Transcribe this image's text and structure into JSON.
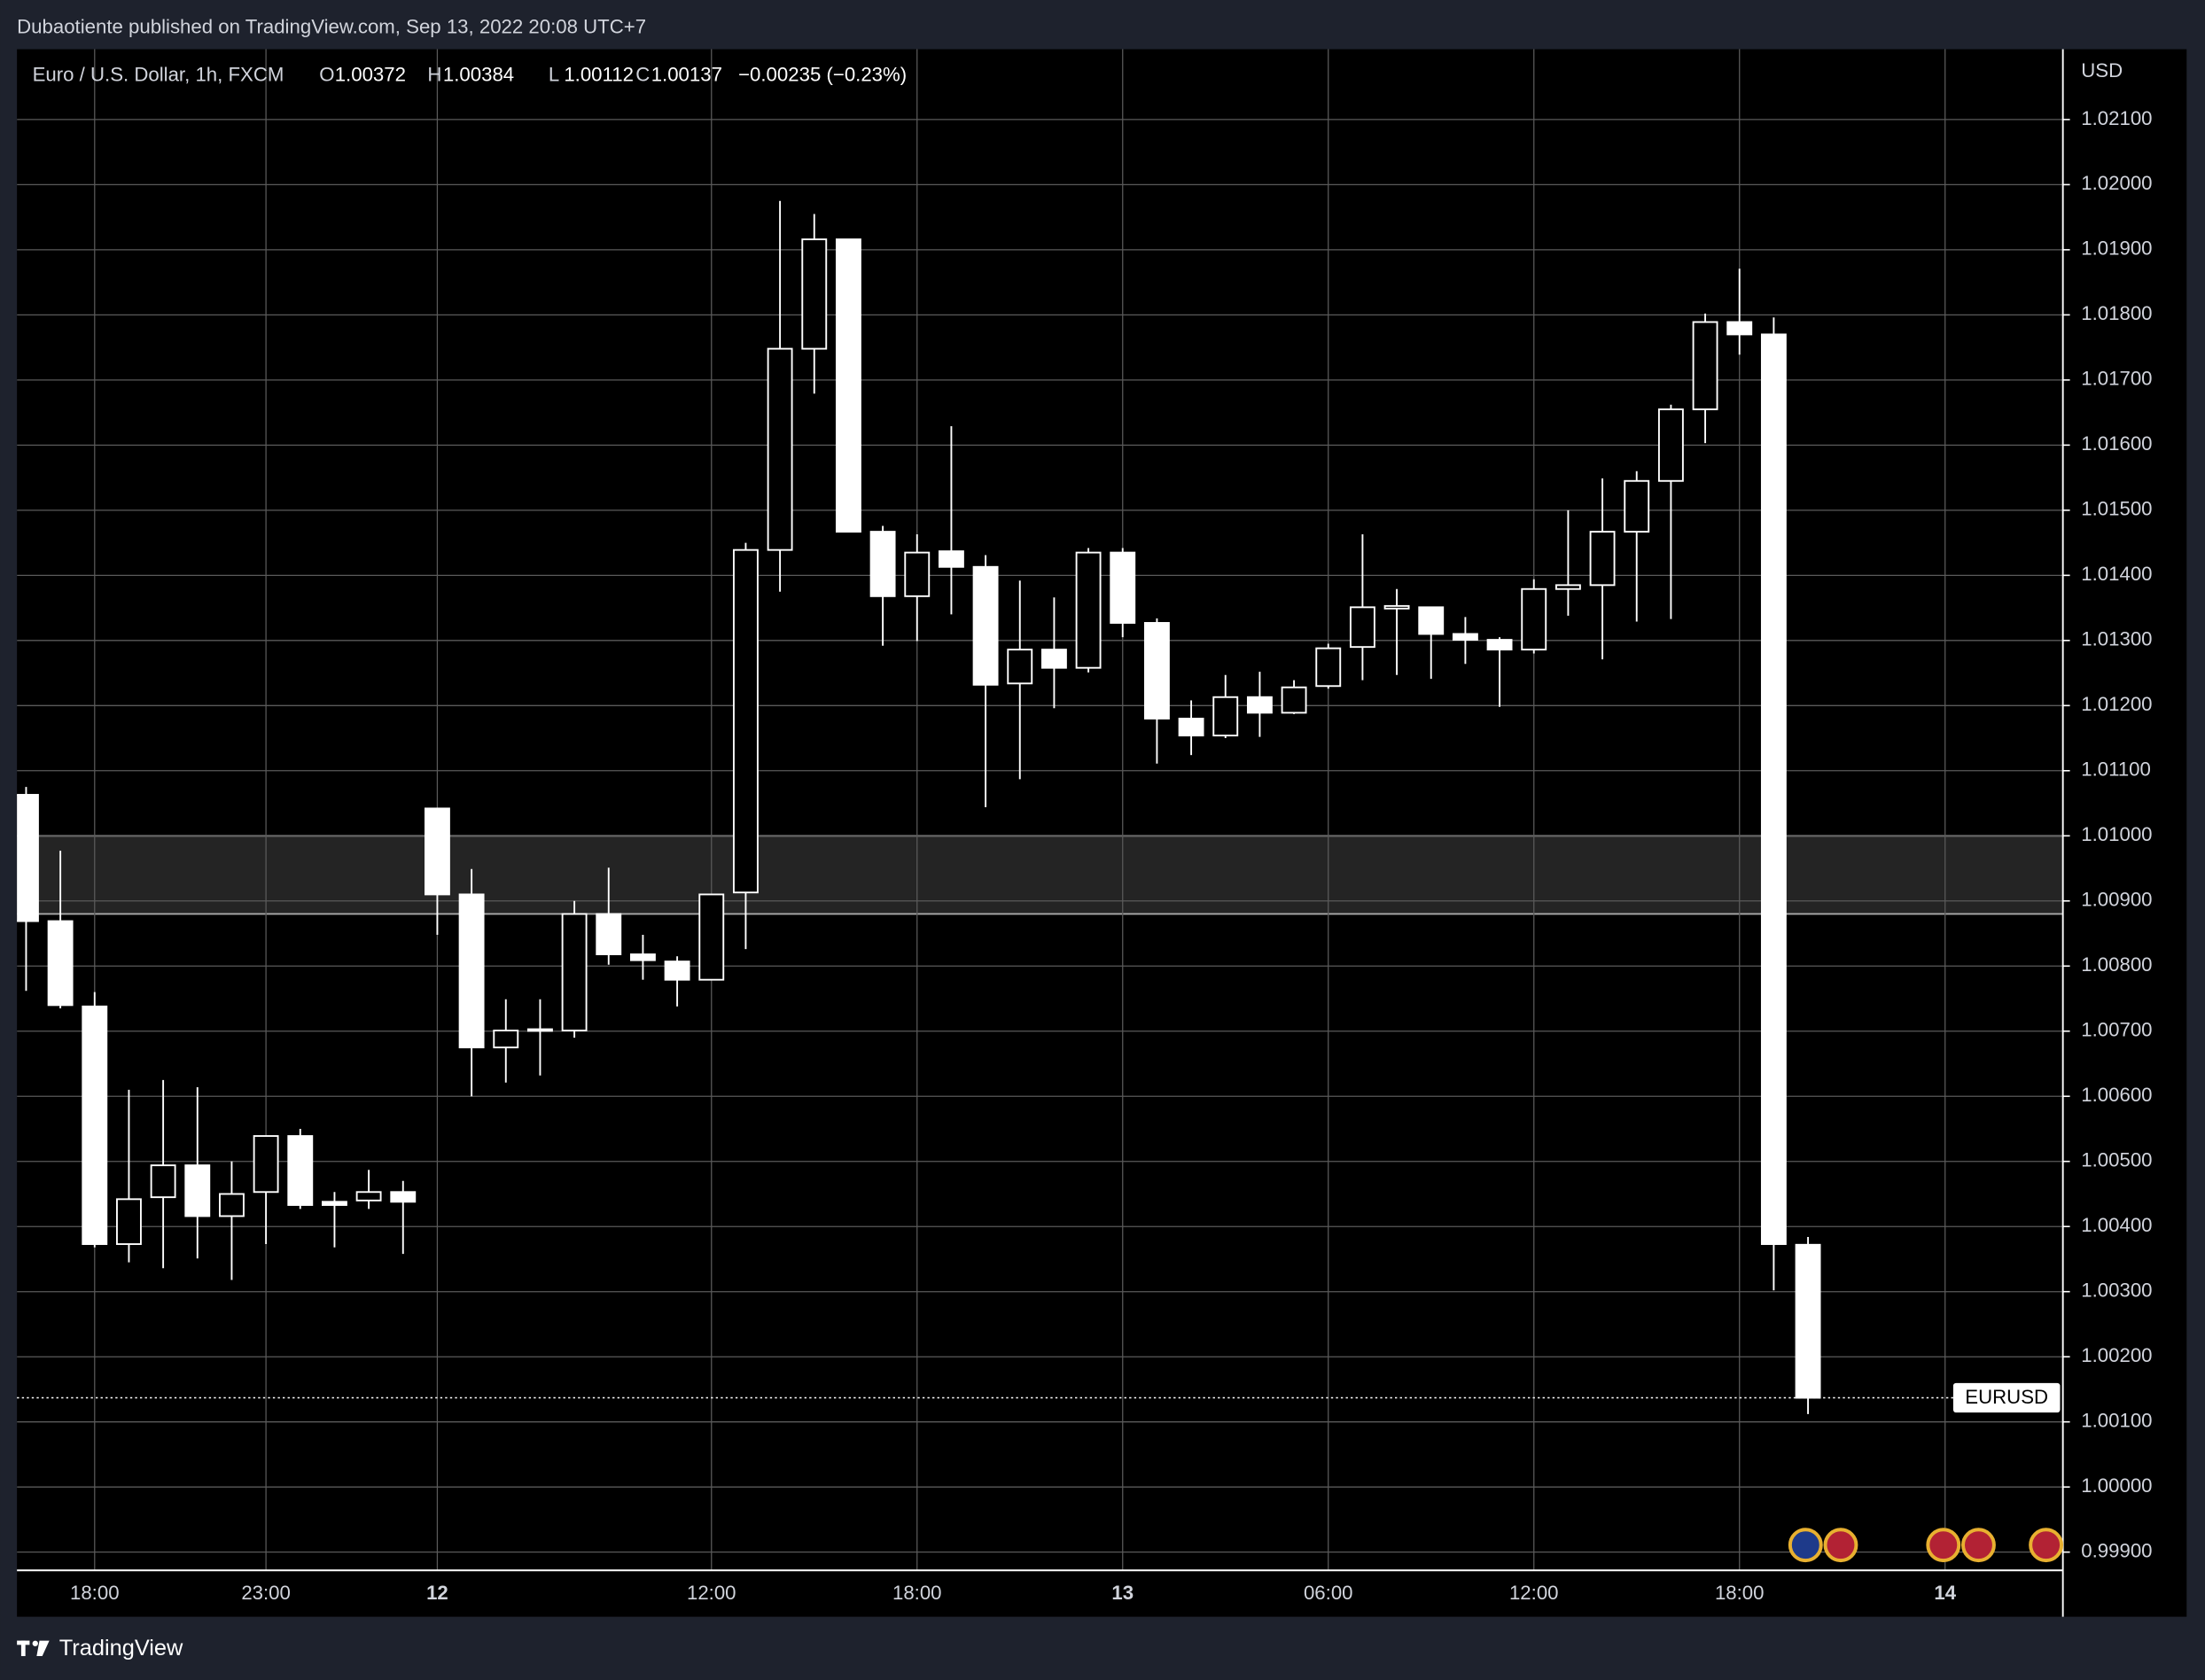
{
  "header": {
    "text": "Dubaotiente published on TradingView.com, Sep 13, 2022 20:08 UTC+7"
  },
  "footer": {
    "brand": "TradingView"
  },
  "chart_data": {
    "type": "candlestick",
    "symbol_title": "Euro / U.S. Dollar, 1h, FXCM",
    "legend_letters": [
      "O",
      "H",
      "L",
      "C"
    ],
    "change_label": "−0.00235 (−0.23%)",
    "y_axis_unit": "USD",
    "categories": [
      null,
      null,
      "18:00",
      null,
      null,
      null,
      null,
      "23:00",
      null,
      null,
      null,
      null,
      "12",
      null,
      null,
      null,
      null,
      null,
      null,
      null,
      "12:00",
      null,
      null,
      null,
      null,
      null,
      "18:00",
      null,
      null,
      null,
      null,
      null,
      "13",
      null,
      null,
      null,
      null,
      null,
      "06:00",
      null,
      null,
      null,
      null,
      null,
      "12:00",
      null,
      null,
      null,
      null,
      null,
      "18:00",
      null,
      null,
      null,
      null,
      null,
      "14"
    ],
    "series": [
      {
        "name": "EURUSD",
        "color": "#ffffff",
        "open": [
          1.01063,
          1.00869,
          1.00738,
          1.00373,
          1.00445,
          1.00494,
          1.00416,
          1.00453,
          1.00539,
          1.00438,
          1.0044,
          1.00453,
          1.01042,
          1.0091,
          1.00675,
          1.00701,
          1.00701,
          1.0088,
          1.00818,
          1.00807,
          1.00779,
          1.00913,
          1.01439,
          1.01748,
          1.01916,
          1.01467,
          1.01368,
          1.01437,
          1.01413,
          1.01234,
          1.01286,
          1.01258,
          1.01435,
          1.01327,
          1.0118,
          1.01154,
          1.01213,
          1.01189,
          1.0123,
          1.0129,
          1.01349,
          1.01351,
          1.0131,
          1.01301,
          1.01286,
          1.01379,
          1.01385,
          1.01467,
          1.01545,
          1.01655,
          1.01789,
          1.0177,
          1.00372,
          null,
          null,
          null,
          null
        ],
        "high": [
          1.01075,
          1.00977,
          1.0076,
          1.0061,
          1.00625,
          1.00614,
          1.005,
          1.00539,
          1.0055,
          1.00453,
          1.00487,
          1.0047,
          1.01042,
          1.00949,
          1.00749,
          1.00749,
          1.009,
          1.00951,
          1.00848,
          1.00815,
          1.0091,
          1.0145,
          1.01975,
          1.01955,
          1.01916,
          1.01476,
          1.01463,
          1.01629,
          1.01431,
          1.01392,
          1.01366,
          1.01442,
          1.01442,
          1.01334,
          1.01208,
          1.01247,
          1.01252,
          1.01239,
          1.01295,
          1.01463,
          1.01379,
          1.01351,
          1.01336,
          1.01305,
          1.01394,
          1.015,
          1.01549,
          1.0156,
          1.01662,
          1.01802,
          1.01871,
          1.01796,
          1.00384,
          null,
          null,
          null,
          null
        ],
        "low": [
          1.00762,
          1.00735,
          1.00368,
          1.00345,
          1.00336,
          1.00351,
          1.00318,
          1.00373,
          1.00427,
          1.00368,
          1.00427,
          1.00358,
          1.00848,
          1.006,
          1.00621,
          1.00632,
          1.0069,
          1.00802,
          1.00779,
          1.00738,
          1.00779,
          1.00826,
          1.01375,
          1.01679,
          1.01467,
          1.01292,
          1.01299,
          1.0134,
          1.01044,
          1.01087,
          1.01196,
          1.01251,
          1.01305,
          1.01111,
          1.01124,
          1.0115,
          1.01152,
          1.01187,
          1.01226,
          1.01239,
          1.01247,
          1.01241,
          1.01264,
          1.01198,
          1.0128,
          1.01338,
          1.01271,
          1.01329,
          1.01333,
          1.01603,
          1.01739,
          1.00302,
          1.00112,
          null,
          null,
          null,
          null
        ],
        "close": [
          1.00869,
          1.0074,
          1.00373,
          1.00442,
          1.00494,
          1.00416,
          1.0045,
          1.00539,
          1.00433,
          1.00433,
          1.00453,
          1.00438,
          1.0091,
          1.00675,
          1.00701,
          1.00703,
          1.0088,
          1.00818,
          1.00809,
          1.00779,
          1.0091,
          1.01439,
          1.01748,
          1.01916,
          1.01467,
          1.01368,
          1.01435,
          1.01413,
          1.01232,
          1.01286,
          1.01258,
          1.01435,
          1.01327,
          1.0118,
          1.01154,
          1.01213,
          1.01189,
          1.01228,
          1.01288,
          1.01351,
          1.01353,
          1.0131,
          1.01301,
          1.01286,
          1.01379,
          1.01385,
          1.01467,
          1.01545,
          1.01655,
          1.01789,
          1.0177,
          1.00373,
          1.00137,
          null,
          null,
          null,
          null
        ]
      }
    ],
    "zones": [
      {
        "from": 1.0088,
        "to": 1.01
      }
    ],
    "ylim": [
      0.99872,
      1.02208
    ],
    "yticks": [
      {
        "value": 0.999,
        "label": "0.99900"
      },
      {
        "value": 1.0,
        "label": "1.00000"
      },
      {
        "value": 1.001,
        "label": "1.00100"
      },
      {
        "value": 1.002,
        "label": "1.00200"
      },
      {
        "value": 1.003,
        "label": "1.00300"
      },
      {
        "value": 1.004,
        "label": "1.00400"
      },
      {
        "value": 1.005,
        "label": "1.00500"
      },
      {
        "value": 1.006,
        "label": "1.00600"
      },
      {
        "value": 1.007,
        "label": "1.00700"
      },
      {
        "value": 1.008,
        "label": "1.00800"
      },
      {
        "value": 1.009,
        "label": "1.00900"
      },
      {
        "value": 1.01,
        "label": "1.01000"
      },
      {
        "value": 1.011,
        "label": "1.01100"
      },
      {
        "value": 1.012,
        "label": "1.01200"
      },
      {
        "value": 1.013,
        "label": "1.01300"
      },
      {
        "value": 1.014,
        "label": "1.01400"
      },
      {
        "value": 1.015,
        "label": "1.01500"
      },
      {
        "value": 1.016,
        "label": "1.01600"
      },
      {
        "value": 1.017,
        "label": "1.01700"
      },
      {
        "value": 1.018,
        "label": "1.01800"
      },
      {
        "value": 1.019,
        "label": "1.01900"
      },
      {
        "value": 1.02,
        "label": "1.02000"
      },
      {
        "value": 1.021,
        "label": "1.02100"
      }
    ],
    "grid": true
  }
}
